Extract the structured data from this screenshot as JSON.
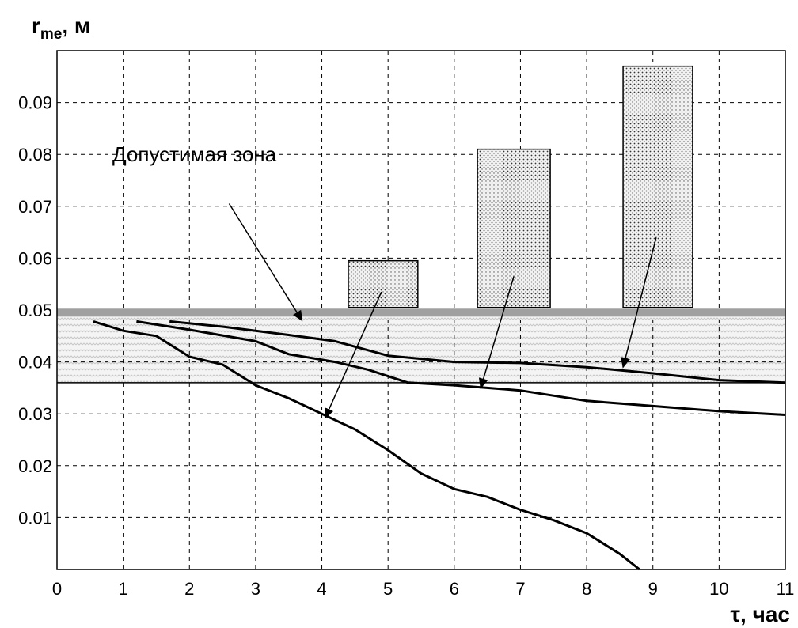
{
  "chart_data": {
    "type": "line",
    "ylabel": "r",
    "ylabel_sub": "me",
    "ylabel_unit": ", м",
    "xlabel": "τ, час",
    "annotation": "Допустимая зона",
    "xlim": [
      0,
      11
    ],
    "ylim": [
      0.0,
      0.1
    ],
    "x_ticks": [
      0,
      1,
      2,
      3,
      4,
      5,
      6,
      7,
      8,
      9,
      10,
      11
    ],
    "y_ticks": [
      0.01,
      0.02,
      0.03,
      0.04,
      0.05,
      0.06,
      0.07,
      0.08,
      0.09
    ],
    "grid": "dashed",
    "admissible_zone": {
      "from": 0.036,
      "to": 0.049
    },
    "limit_line": 0.0495,
    "lower_line": 0.036,
    "bars": [
      {
        "x_from": 4.4,
        "x_to": 5.45,
        "bottom": 0.0505,
        "top": 0.0595
      },
      {
        "x_from": 6.35,
        "x_to": 7.45,
        "bottom": 0.0505,
        "top": 0.081
      },
      {
        "x_from": 8.55,
        "x_to": 9.6,
        "bottom": 0.0505,
        "top": 0.097
      }
    ],
    "series": [
      {
        "values": [
          [
            1.7,
            0.0478
          ],
          [
            2.5,
            0.0468
          ],
          [
            3.5,
            0.0452
          ],
          [
            4.2,
            0.044
          ],
          [
            5.0,
            0.0412
          ],
          [
            6.0,
            0.04
          ],
          [
            7.0,
            0.0398
          ],
          [
            8.0,
            0.039
          ],
          [
            9.0,
            0.0378
          ],
          [
            10.0,
            0.0365
          ],
          [
            11.0,
            0.036
          ]
        ]
      },
      {
        "values": [
          [
            1.2,
            0.0478
          ],
          [
            2.0,
            0.0462
          ],
          [
            3.0,
            0.044
          ],
          [
            3.5,
            0.0415
          ],
          [
            4.2,
            0.04
          ],
          [
            4.7,
            0.0385
          ],
          [
            5.3,
            0.036
          ],
          [
            6.0,
            0.0355
          ],
          [
            7.0,
            0.0345
          ],
          [
            8.0,
            0.0325
          ],
          [
            9.0,
            0.0315
          ],
          [
            10.0,
            0.0305
          ],
          [
            11.0,
            0.0298
          ]
        ]
      },
      {
        "values": [
          [
            0.55,
            0.0478
          ],
          [
            1.0,
            0.046
          ],
          [
            1.5,
            0.045
          ],
          [
            2.0,
            0.041
          ],
          [
            2.5,
            0.0395
          ],
          [
            3.0,
            0.0355
          ],
          [
            3.5,
            0.033
          ],
          [
            4.0,
            0.03
          ],
          [
            4.5,
            0.027
          ],
          [
            5.0,
            0.023
          ],
          [
            5.5,
            0.0185
          ],
          [
            6.0,
            0.0155
          ],
          [
            6.5,
            0.014
          ],
          [
            7.0,
            0.0115
          ],
          [
            7.5,
            0.0095
          ],
          [
            8.0,
            0.007
          ],
          [
            8.5,
            0.003
          ],
          [
            8.8,
            0.0
          ]
        ]
      }
    ],
    "arrows": [
      {
        "from": [
          2.6,
          0.0705
        ],
        "to": [
          3.7,
          0.048
        ]
      },
      {
        "from": [
          4.9,
          0.0535
        ],
        "to": [
          4.05,
          0.0292
        ]
      },
      {
        "from": [
          6.9,
          0.0565
        ],
        "to": [
          6.4,
          0.035
        ]
      },
      {
        "from": [
          9.05,
          0.064
        ],
        "to": [
          8.55,
          0.039
        ]
      }
    ]
  }
}
